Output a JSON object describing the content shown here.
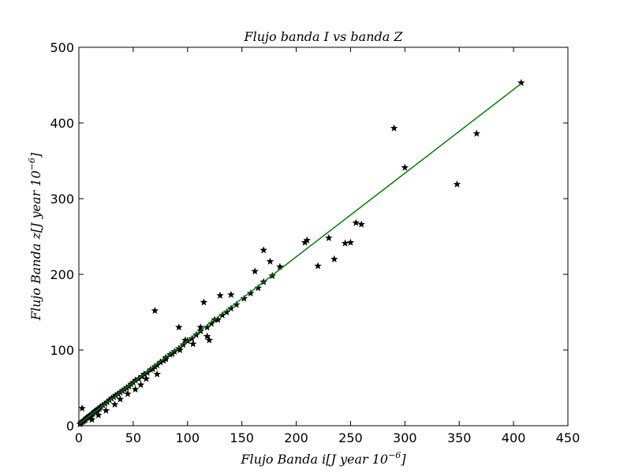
{
  "chart_data": {
    "type": "scatter",
    "title": "Flujo banda I vs banda Z",
    "xlabel": {
      "main": "Flujo Banda i[J year 10",
      "exp": "−6",
      "end": "]"
    },
    "ylabel": {
      "main": "Flujo Banda z[J year 10",
      "exp": "−6",
      "end": "]"
    },
    "xlim": [
      0,
      450
    ],
    "ylim": [
      0,
      500
    ],
    "x_ticks": [
      "0",
      "50",
      "100",
      "150",
      "200",
      "250",
      "300",
      "350",
      "400",
      "450"
    ],
    "y_ticks": [
      "0",
      "100",
      "200",
      "300",
      "400",
      "500"
    ],
    "grid": false,
    "marker": "star",
    "marker_color": "#000000",
    "fit_color": "#008000",
    "series": [
      {
        "x": [
          1,
          2,
          3,
          4,
          5,
          6,
          7,
          8,
          9,
          10,
          11,
          12,
          13,
          14,
          15,
          16,
          17,
          18,
          19,
          20,
          22,
          24,
          26,
          28,
          30,
          32,
          34,
          36,
          38,
          40,
          42,
          44,
          46,
          48,
          50,
          52,
          55,
          58,
          60,
          63,
          66,
          70,
          72,
          75,
          78,
          80,
          84,
          88,
          92,
          96,
          100,
          104,
          108,
          112,
          118,
          122,
          128,
          132,
          136,
          140,
          145,
          152,
          158,
          165,
          170,
          178,
          185,
          208,
          210,
          220,
          230,
          235,
          245,
          250,
          255,
          260,
          290,
          300,
          348,
          366,
          407,
          3,
          12,
          18,
          25,
          33,
          38,
          45,
          52,
          57,
          62,
          68,
          72,
          80,
          86,
          93,
          98,
          105,
          112,
          118,
          125,
          70,
          92,
          115,
          170,
          176,
          162,
          140,
          130,
          120
        ],
        "y": [
          2,
          4,
          5,
          6,
          7,
          8,
          10,
          11,
          12,
          13,
          14,
          15,
          16,
          18,
          19,
          20,
          21,
          22,
          23,
          25,
          27,
          29,
          31,
          34,
          36,
          38,
          40,
          42,
          44,
          46,
          48,
          50,
          52,
          55,
          57,
          60,
          62,
          65,
          68,
          70,
          74,
          78,
          80,
          84,
          86,
          90,
          94,
          98,
          102,
          107,
          112,
          115,
          120,
          125,
          130,
          135,
          140,
          146,
          150,
          155,
          160,
          168,
          175,
          182,
          190,
          198,
          210,
          242,
          245,
          211,
          248,
          220,
          241,
          242,
          268,
          266,
          393,
          341,
          319,
          386,
          453,
          23,
          8,
          14,
          20,
          28,
          35,
          42,
          48,
          54,
          62,
          75,
          68,
          88,
          95,
          100,
          113,
          108,
          130,
          118,
          140,
          152,
          130,
          163,
          232,
          217,
          204,
          173,
          172,
          113
        ]
      }
    ],
    "fit_line": {
      "x": [
        0,
        407
      ],
      "y": [
        2,
        452
      ]
    }
  }
}
